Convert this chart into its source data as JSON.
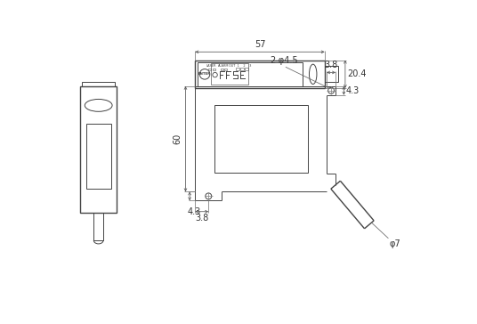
{
  "bg_color": "#ffffff",
  "line_color": "#444444",
  "thin_lw": 0.7,
  "med_lw": 1.0,
  "dim_lw": 0.55,
  "figsize": [
    5.36,
    3.64
  ],
  "dpi": 100,
  "annotations": {
    "dim_57": "57",
    "dim_20_4": "20.4",
    "dim_60": "60",
    "dim_3_8_top": "3.8",
    "dim_4_3_right": "4.3",
    "dim_2_phi45": "2-φ4.5",
    "dim_3_8_bot": "3.8",
    "dim_4_3_bot": "4.3",
    "dim_phi7": "φ7"
  },
  "label_laser": "LASER",
  "label_alarm": "ALARM",
  "label_enter": "ENTER"
}
